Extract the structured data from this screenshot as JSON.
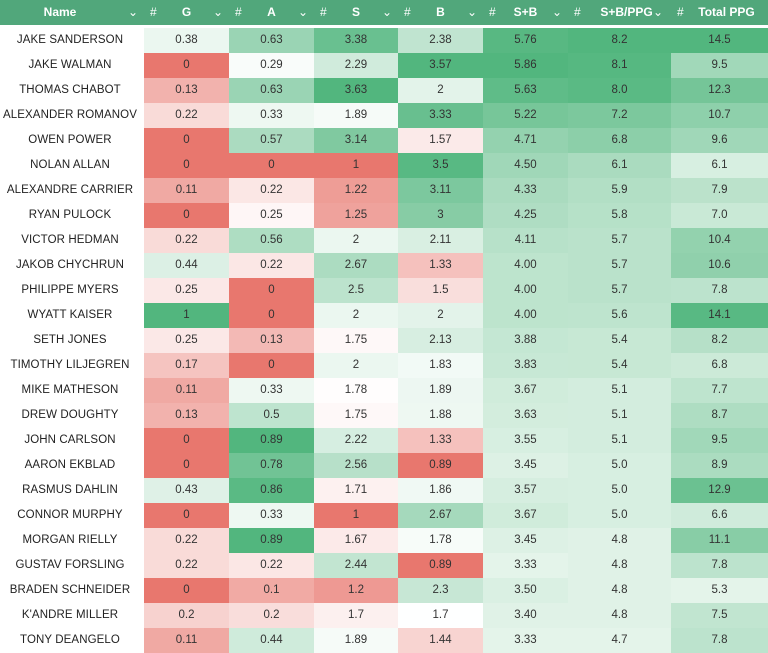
{
  "header": {
    "name_label": "Name",
    "hash": "#",
    "chevron": "⌄",
    "columns": [
      "G",
      "A",
      "S",
      "B",
      "S+B",
      "S+B/PPG",
      "Total PPG"
    ]
  },
  "colors": {
    "header_bg": "#51a77b",
    "high": "#52b67e",
    "low": "#e8776e"
  },
  "rows": [
    {
      "name": "JAKE SANDERSON",
      "values": [
        "0.38",
        "0.63",
        "3.38",
        "2.38",
        "5.76",
        "8.2",
        "14.5"
      ]
    },
    {
      "name": "JAKE WALMAN",
      "values": [
        "0",
        "0.29",
        "2.29",
        "3.57",
        "5.86",
        "8.1",
        "9.5"
      ]
    },
    {
      "name": "THOMAS CHABOT",
      "values": [
        "0.13",
        "0.63",
        "3.63",
        "2",
        "5.63",
        "8.0",
        "12.3"
      ]
    },
    {
      "name": "ALEXANDER ROMANOV",
      "values": [
        "0.22",
        "0.33",
        "1.89",
        "3.33",
        "5.22",
        "7.2",
        "10.7"
      ]
    },
    {
      "name": "OWEN POWER",
      "values": [
        "0",
        "0.57",
        "3.14",
        "1.57",
        "4.71",
        "6.8",
        "9.6"
      ]
    },
    {
      "name": "NOLAN ALLAN",
      "values": [
        "0",
        "0",
        "1",
        "3.5",
        "4.50",
        "6.1",
        "6.1"
      ]
    },
    {
      "name": "ALEXANDRE CARRIER",
      "values": [
        "0.11",
        "0.22",
        "1.22",
        "3.11",
        "4.33",
        "5.9",
        "7.9"
      ]
    },
    {
      "name": "RYAN PULOCK",
      "values": [
        "0",
        "0.25",
        "1.25",
        "3",
        "4.25",
        "5.8",
        "7.0"
      ]
    },
    {
      "name": "VICTOR HEDMAN",
      "values": [
        "0.22",
        "0.56",
        "2",
        "2.11",
        "4.11",
        "5.7",
        "10.4"
      ]
    },
    {
      "name": "JAKOB CHYCHRUN",
      "values": [
        "0.44",
        "0.22",
        "2.67",
        "1.33",
        "4.00",
        "5.7",
        "10.6"
      ]
    },
    {
      "name": "PHILIPPE MYERS",
      "values": [
        "0.25",
        "0",
        "2.5",
        "1.5",
        "4.00",
        "5.7",
        "7.8"
      ]
    },
    {
      "name": "WYATT KAISER",
      "values": [
        "1",
        "0",
        "2",
        "2",
        "4.00",
        "5.6",
        "14.1"
      ]
    },
    {
      "name": "SETH JONES",
      "values": [
        "0.25",
        "0.13",
        "1.75",
        "2.13",
        "3.88",
        "5.4",
        "8.2"
      ]
    },
    {
      "name": "TIMOTHY LILJEGREN",
      "values": [
        "0.17",
        "0",
        "2",
        "1.83",
        "3.83",
        "5.4",
        "6.8"
      ]
    },
    {
      "name": "MIKE MATHESON",
      "values": [
        "0.11",
        "0.33",
        "1.78",
        "1.89",
        "3.67",
        "5.1",
        "7.7"
      ]
    },
    {
      "name": "DREW DOUGHTY",
      "values": [
        "0.13",
        "0.5",
        "1.75",
        "1.88",
        "3.63",
        "5.1",
        "8.7"
      ]
    },
    {
      "name": "JOHN CARLSON",
      "values": [
        "0",
        "0.89",
        "2.22",
        "1.33",
        "3.55",
        "5.1",
        "9.5"
      ]
    },
    {
      "name": "AARON EKBLAD",
      "values": [
        "0",
        "0.78",
        "2.56",
        "0.89",
        "3.45",
        "5.0",
        "8.9"
      ]
    },
    {
      "name": "RASMUS DAHLIN",
      "values": [
        "0.43",
        "0.86",
        "1.71",
        "1.86",
        "3.57",
        "5.0",
        "12.9"
      ]
    },
    {
      "name": "CONNOR MURPHY",
      "values": [
        "0",
        "0.33",
        "1",
        "2.67",
        "3.67",
        "5.0",
        "6.6"
      ]
    },
    {
      "name": "MORGAN RIELLY",
      "values": [
        "0.22",
        "0.89",
        "1.67",
        "1.78",
        "3.45",
        "4.8",
        "11.1"
      ]
    },
    {
      "name": "GUSTAV FORSLING",
      "values": [
        "0.22",
        "0.22",
        "2.44",
        "0.89",
        "3.33",
        "4.8",
        "7.8"
      ]
    },
    {
      "name": "BRADEN SCHNEIDER",
      "values": [
        "0",
        "0.1",
        "1.2",
        "2.3",
        "3.50",
        "4.8",
        "5.3"
      ]
    },
    {
      "name": "K'ANDRE MILLER",
      "values": [
        "0.2",
        "0.2",
        "1.7",
        "1.7",
        "3.40",
        "4.8",
        "7.5"
      ]
    },
    {
      "name": "TONY DEANGELO",
      "values": [
        "0.11",
        "0.44",
        "1.89",
        "1.44",
        "3.33",
        "4.7",
        "7.8"
      ]
    }
  ]
}
